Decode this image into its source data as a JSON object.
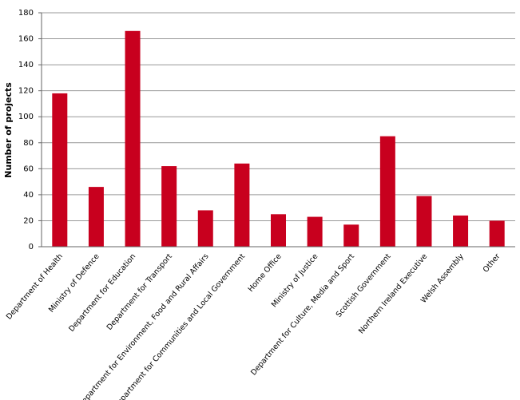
{
  "chart_data": {
    "type": "bar",
    "y_label": "Number  of  projects",
    "categories": [
      "Department of Health",
      "Ministry of Defence",
      "Department for Education",
      "Department for Transport",
      "Department for Environment, Food and Rural Affairs",
      "Department for Communities and Local Government",
      "Home Office",
      "Ministry of Justice",
      "Department for Culture, Media and Sport",
      "Scottish Government",
      "Northern Ireland Executive",
      "Welsh Assembly",
      "Other"
    ],
    "values": [
      118,
      46,
      166,
      62,
      28,
      64,
      25,
      23,
      17,
      85,
      39,
      24,
      20
    ],
    "color": "#c8001e",
    "ylim": [
      0,
      180
    ],
    "yticks": [
      0,
      20,
      40,
      60,
      80,
      100,
      120,
      140,
      160,
      180
    ],
    "grid": true
  }
}
